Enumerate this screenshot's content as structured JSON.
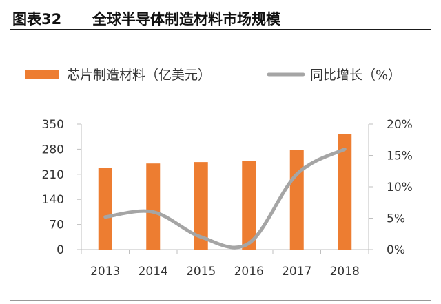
{
  "header": {
    "figure_number": "图表32",
    "title": "全球半导体制造材料市场规模"
  },
  "colors": {
    "bar": "#ed7d31",
    "line": "#a5a5a5",
    "axis": "#bfbfbf"
  },
  "chart_data": {
    "type": "bar",
    "title": "全球半导体制造材料市场规模",
    "categories": [
      "2013",
      "2014",
      "2015",
      "2016",
      "2017",
      "2018"
    ],
    "series": [
      {
        "name": "芯片制造材料（亿美元）",
        "type": "bar",
        "axis": "left",
        "values": [
          227,
          240,
          244,
          247,
          278,
          322
        ]
      },
      {
        "name": "同比增长（%）",
        "type": "line",
        "axis": "right",
        "values": [
          5.2,
          6.0,
          2.0,
          1.0,
          12.0,
          16.0
        ]
      }
    ],
    "y_left": {
      "ylim": [
        0,
        350
      ],
      "ticks": [
        "0",
        "70",
        "140",
        "210",
        "280",
        "350"
      ]
    },
    "y_right": {
      "ylim": [
        0,
        20
      ],
      "ticks": [
        "0%",
        "5%",
        "10%",
        "15%",
        "20%"
      ]
    },
    "legend": "top",
    "grid": false
  }
}
